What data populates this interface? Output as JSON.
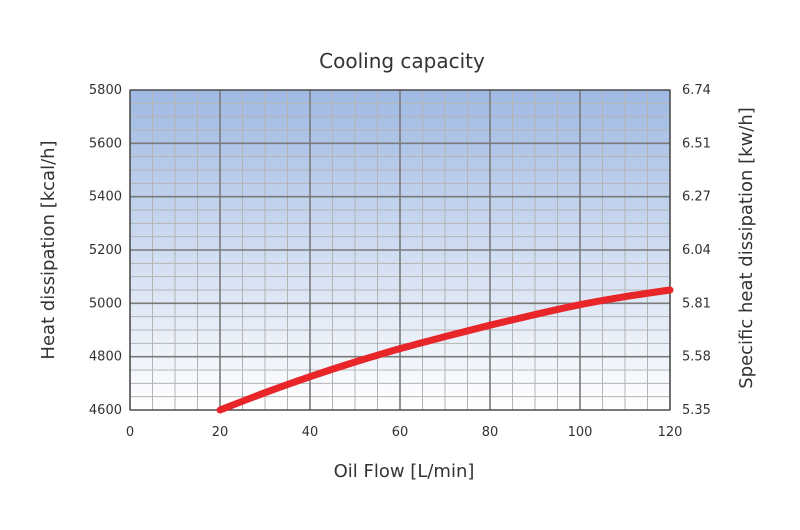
{
  "chart_data": {
    "type": "line",
    "title": "Cooling capacity",
    "xlabel": "Oil Flow [L/min]",
    "ylabel": "Heat dissipation [kcal/h]",
    "y2label": "Specific heat dissipation [kw/h]",
    "xlim": [
      0,
      120
    ],
    "ylim": [
      4600,
      5800
    ],
    "x_ticks": [
      "0",
      "20",
      "40",
      "60",
      "80",
      "100",
      "120"
    ],
    "y_ticks": [
      "4600",
      "4800",
      "5000",
      "5200",
      "5400",
      "5600",
      "5800"
    ],
    "y2_ticks": [
      "5.35",
      "5.58",
      "5.81",
      "6.04",
      "6.27",
      "6.51",
      "6.74"
    ],
    "grid": true,
    "series": [
      {
        "color": "#e8262a",
        "x": [
          20,
          30,
          40,
          50,
          60,
          70,
          80,
          90,
          100,
          110,
          120
        ],
        "y": [
          4600,
          4665,
          4725,
          4780,
          4830,
          4875,
          4918,
          4958,
          4995,
          5025,
          5050
        ]
      }
    ],
    "colors": {
      "plot_top": "#9fb9e3",
      "plot_bottom": "#ffffff",
      "grid_major": "#7a7a7a",
      "grid_minor": "#b4b4b4"
    }
  }
}
